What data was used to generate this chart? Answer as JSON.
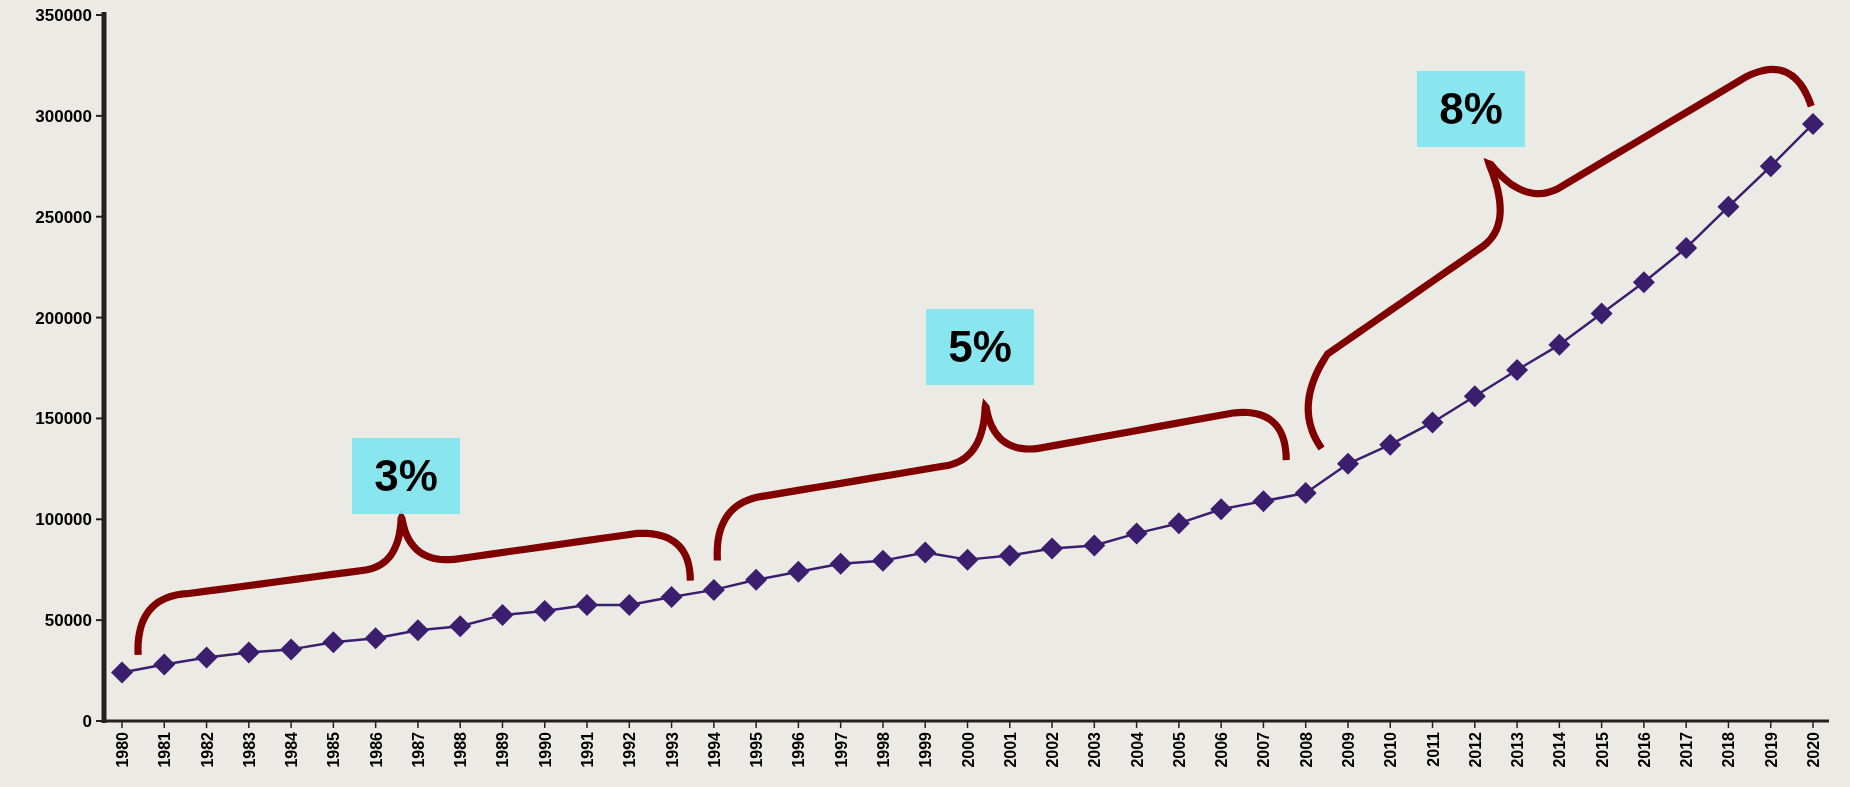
{
  "chart_data": {
    "type": "line",
    "categories": [
      "1980",
      "1981",
      "1982",
      "1983",
      "1984",
      "1985",
      "1986",
      "1987",
      "1988",
      "1989",
      "1990",
      "1991",
      "1992",
      "1993",
      "1994",
      "1995",
      "1996",
      "1997",
      "1998",
      "1999",
      "2000",
      "2001",
      "2002",
      "2003",
      "2004",
      "2005",
      "2006",
      "2007",
      "2008",
      "2009",
      "2010",
      "2011",
      "2012",
      "2013",
      "2014",
      "2015",
      "2016",
      "2017",
      "2018",
      "2019",
      "2020"
    ],
    "series": [
      {
        "color": "#3b1f6e",
        "values": [
          24000,
          28000,
          31500,
          34000,
          35500,
          39000,
          41000,
          45000,
          47000,
          52500,
          54500,
          57500,
          57500,
          61500,
          65000,
          70000,
          74000,
          78000,
          79500,
          83500,
          80000,
          82000,
          85500,
          87000,
          93000,
          98000,
          105000,
          109000,
          113000,
          127500,
          137000,
          148000,
          161000,
          174000,
          186500,
          202000,
          217500,
          234500,
          255000,
          275000,
          296000
        ]
      }
    ],
    "ylim": [
      0,
      350000
    ],
    "yticks": [
      0,
      50000,
      100000,
      150000,
      200000,
      250000,
      300000,
      350000
    ],
    "marker": "diamond",
    "line_style": "solid",
    "annotations": [
      "3%",
      "5%",
      "8%"
    ]
  }
}
